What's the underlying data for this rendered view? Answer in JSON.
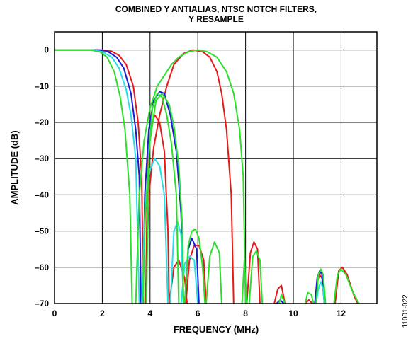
{
  "chart_data": {
    "type": "line",
    "title_lines": [
      "COMBINED Y ANTIALIAS, NTSC NOTCH FILTERS,",
      "Y RESAMPLE"
    ],
    "xlabel": "FREQUENCY (MHz)",
    "ylabel": "AMPLITUDE (dB)",
    "xlim": [
      0,
      13.5
    ],
    "ylim": [
      -70,
      5
    ],
    "x_ticks": [
      0,
      2,
      4,
      6,
      8,
      10,
      12
    ],
    "y_ticks": [
      0,
      -10,
      -20,
      -30,
      -40,
      -50,
      -60,
      -70
    ],
    "x_tick_labels": [
      "0",
      "2",
      "4",
      "6",
      "8",
      "10",
      "12"
    ],
    "y_tick_labels": [
      "0",
      "–10",
      "–20",
      "–30",
      "–40",
      "–50",
      "–60",
      "–70"
    ],
    "grid": true,
    "figure_id": "11001-022",
    "series": [
      {
        "color": "#e81818",
        "points": [
          [
            0,
            0
          ],
          [
            2,
            0
          ],
          [
            2.4,
            -0.4
          ],
          [
            2.7,
            -1.5
          ],
          [
            3.0,
            -4
          ],
          [
            3.3,
            -10
          ],
          [
            3.5,
            -20
          ],
          [
            3.65,
            -35
          ],
          [
            3.72,
            -70
          ],
          null,
          [
            3.82,
            -70
          ],
          [
            3.9,
            -32
          ],
          [
            4.05,
            -21
          ],
          [
            4.2,
            -18
          ],
          [
            4.4,
            -20
          ],
          [
            4.6,
            -28
          ],
          [
            4.75,
            -50
          ],
          [
            4.8,
            -70
          ],
          null,
          [
            4.8,
            -70
          ],
          [
            5.0,
            -60
          ],
          [
            5.2,
            -58
          ],
          [
            5.45,
            -63
          ],
          [
            5.55,
            -70
          ],
          null,
          [
            3.8,
            -70
          ],
          [
            3.95,
            -40
          ],
          [
            4.15,
            -27
          ],
          [
            4.4,
            -18
          ],
          [
            4.7,
            -10
          ],
          [
            5.0,
            -4
          ],
          [
            5.4,
            -1
          ],
          [
            5.8,
            0
          ],
          [
            6.2,
            -0.5
          ],
          [
            6.5,
            -2
          ],
          [
            6.8,
            -6
          ],
          [
            7.0,
            -12
          ],
          [
            7.2,
            -22
          ],
          [
            7.4,
            -40
          ],
          [
            7.5,
            -70
          ],
          null,
          [
            5.5,
            -70
          ],
          [
            5.65,
            -58
          ],
          [
            5.85,
            -54
          ],
          [
            6.05,
            -54
          ],
          [
            6.25,
            -58
          ],
          [
            6.35,
            -70
          ],
          null,
          [
            8.05,
            -70
          ],
          [
            8.2,
            -56
          ],
          [
            8.35,
            -53
          ],
          [
            8.5,
            -55
          ],
          [
            8.6,
            -70
          ],
          null,
          [
            9.2,
            -70
          ],
          [
            9.35,
            -66
          ],
          [
            9.5,
            -65
          ],
          [
            9.65,
            -70
          ],
          null,
          [
            10.5,
            -70
          ],
          [
            10.65,
            -69
          ],
          [
            10.8,
            -70
          ],
          null,
          [
            10.9,
            -70
          ],
          [
            11.0,
            -64
          ],
          [
            11.1,
            -62
          ],
          [
            11.2,
            -63
          ],
          [
            11.3,
            -70
          ],
          null,
          [
            11.75,
            -70
          ],
          [
            11.9,
            -61
          ],
          [
            12.05,
            -60
          ],
          [
            12.25,
            -62
          ],
          [
            12.55,
            -68
          ],
          [
            12.7,
            -70
          ]
        ]
      },
      {
        "color": "#1a1ad8",
        "points": [
          [
            0,
            0
          ],
          [
            1.8,
            0
          ],
          [
            2.2,
            -0.3
          ],
          [
            2.6,
            -2
          ],
          [
            2.9,
            -5
          ],
          [
            3.2,
            -12
          ],
          [
            3.4,
            -22
          ],
          [
            3.55,
            -35
          ],
          [
            3.62,
            -70
          ],
          null,
          [
            3.7,
            -70
          ],
          [
            3.78,
            -40
          ],
          [
            3.95,
            -22
          ],
          [
            4.15,
            -14
          ],
          [
            4.4,
            -11.5
          ],
          [
            4.6,
            -12
          ],
          [
            4.85,
            -18
          ],
          [
            5.1,
            -28
          ],
          [
            5.3,
            -45
          ],
          [
            5.4,
            -70
          ],
          null,
          [
            5.45,
            -70
          ],
          [
            5.6,
            -55
          ],
          [
            5.75,
            -52
          ],
          [
            5.95,
            -55
          ],
          [
            6.05,
            -70
          ],
          null,
          [
            9.3,
            -70
          ],
          [
            9.45,
            -69
          ],
          [
            9.6,
            -70
          ],
          null,
          [
            10.9,
            -70
          ],
          [
            11.0,
            -63
          ],
          [
            11.1,
            -61
          ],
          [
            11.2,
            -62
          ],
          [
            11.3,
            -70
          ]
        ]
      },
      {
        "color": "#20e0e8",
        "points": [
          [
            0,
            0
          ],
          [
            1.6,
            0
          ],
          [
            2.0,
            -0.5
          ],
          [
            2.4,
            -2
          ],
          [
            2.7,
            -5
          ],
          [
            3.0,
            -11
          ],
          [
            3.2,
            -18
          ],
          [
            3.4,
            -30
          ],
          [
            3.55,
            -70
          ],
          null,
          [
            3.65,
            -70
          ],
          [
            3.8,
            -42
          ],
          [
            4.0,
            -33
          ],
          [
            4.2,
            -30
          ],
          [
            4.4,
            -32
          ],
          [
            4.6,
            -40
          ],
          [
            4.75,
            -70
          ],
          null,
          [
            4.85,
            -70
          ],
          [
            5.0,
            -50
          ],
          [
            5.15,
            -47.5
          ],
          [
            5.3,
            -51
          ],
          [
            5.4,
            -70
          ],
          null,
          [
            5.3,
            -70
          ],
          [
            5.45,
            -59
          ],
          [
            5.65,
            -57
          ],
          [
            5.85,
            -58
          ],
          [
            6.0,
            -70
          ],
          null,
          [
            10.95,
            -70
          ],
          [
            11.05,
            -66
          ],
          [
            11.15,
            -64
          ],
          [
            11.25,
            -66
          ],
          [
            11.3,
            -70
          ]
        ]
      },
      {
        "color": "#2ae02a",
        "points": [
          [
            0,
            0
          ],
          [
            1.5,
            0
          ],
          [
            1.9,
            -0.5
          ],
          [
            2.2,
            -2
          ],
          [
            2.5,
            -6
          ],
          [
            2.75,
            -13
          ],
          [
            2.95,
            -22
          ],
          [
            3.15,
            -40
          ],
          [
            3.25,
            -70
          ],
          null,
          [
            3.85,
            -70
          ],
          [
            3.95,
            -28
          ],
          [
            4.1,
            -16
          ],
          [
            4.3,
            -12
          ],
          [
            4.5,
            -13
          ],
          [
            4.7,
            -18
          ],
          [
            4.9,
            -26
          ],
          [
            5.1,
            -40
          ],
          [
            5.2,
            -70
          ],
          null,
          [
            3.7,
            -70
          ],
          [
            3.8,
            -45
          ],
          [
            4.0,
            -25
          ],
          [
            4.25,
            -14
          ],
          [
            4.5,
            -12
          ],
          [
            4.8,
            -15
          ],
          [
            5.0,
            -21
          ],
          [
            5.2,
            -32
          ],
          [
            5.35,
            -48
          ],
          [
            5.4,
            -70
          ],
          null,
          [
            3.4,
            -70
          ],
          [
            3.55,
            -40
          ],
          [
            3.75,
            -25
          ],
          [
            4.0,
            -16
          ],
          [
            4.3,
            -10
          ],
          [
            4.6,
            -7
          ],
          [
            4.9,
            -4
          ],
          [
            5.2,
            -2
          ],
          [
            5.6,
            -0.5
          ],
          [
            6.0,
            0
          ],
          [
            6.4,
            -0.5
          ],
          [
            6.8,
            -2
          ],
          [
            7.2,
            -6
          ],
          [
            7.5,
            -12
          ],
          [
            7.75,
            -22
          ],
          [
            7.9,
            -35
          ],
          [
            8.0,
            -70
          ],
          null,
          [
            5.45,
            -70
          ],
          [
            5.6,
            -54
          ],
          [
            5.75,
            -50
          ],
          [
            5.9,
            -49.5
          ],
          [
            6.05,
            -52
          ],
          [
            6.2,
            -60
          ],
          [
            6.3,
            -70
          ],
          null,
          [
            6.35,
            -70
          ],
          [
            6.5,
            -57
          ],
          [
            6.7,
            -53
          ],
          [
            6.9,
            -56
          ],
          [
            7.0,
            -70
          ],
          null,
          [
            7.85,
            -70
          ],
          [
            7.95,
            -58
          ],
          [
            8.05,
            -70
          ],
          null,
          [
            8.15,
            -70
          ],
          [
            8.3,
            -57
          ],
          [
            8.45,
            -55.5
          ],
          [
            8.6,
            -58
          ],
          [
            8.7,
            -70
          ],
          null,
          [
            9.4,
            -70
          ],
          [
            9.5,
            -67.5
          ],
          [
            9.65,
            -70
          ],
          null,
          [
            10.5,
            -70
          ],
          [
            10.6,
            -67
          ],
          [
            10.75,
            -67.5
          ],
          [
            10.85,
            -70
          ],
          null,
          [
            10.95,
            -70
          ],
          [
            11.05,
            -62
          ],
          [
            11.15,
            -60.5
          ],
          [
            11.25,
            -62
          ],
          [
            11.35,
            -70
          ],
          null,
          [
            11.7,
            -70
          ],
          [
            11.85,
            -62
          ],
          [
            12.0,
            -60.5
          ],
          [
            12.2,
            -62
          ],
          [
            12.5,
            -67
          ],
          [
            12.75,
            -70
          ]
        ]
      }
    ]
  }
}
